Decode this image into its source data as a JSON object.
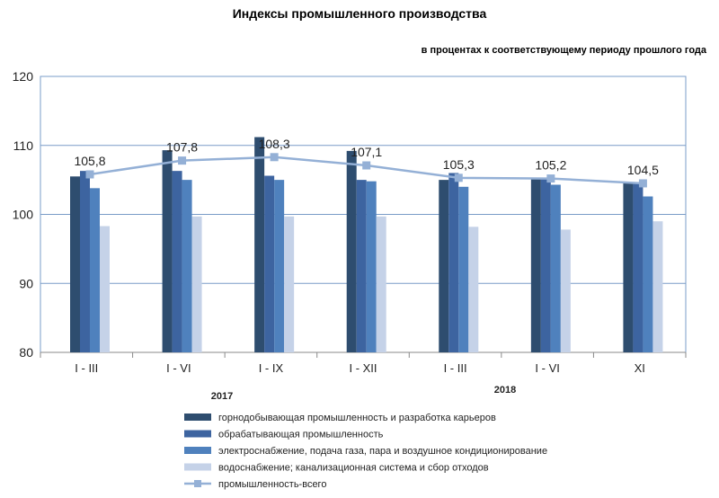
{
  "chart_data": {
    "type": "bar",
    "title": "Индексы промышленного  производства",
    "subtitle": "в процентах к соответствующему периоду прошлого года",
    "ylim": [
      80,
      120
    ],
    "yticks": [
      "80",
      "90",
      "100",
      "110",
      "120"
    ],
    "categories": [
      "I - III",
      "I - VI",
      "I - IX",
      "I - XII",
      "I - III",
      "I - VI",
      "XI"
    ],
    "year_labels": [
      "2017",
      "2018"
    ],
    "grid": true,
    "legend_position": "bottom",
    "series": [
      {
        "name": "горнодобывающая промышленность и разработка карьеров",
        "type": "bar",
        "color": "#2e4d6f",
        "values": [
          105.5,
          109.3,
          111.2,
          109.2,
          105.0,
          105.3,
          104.5
        ]
      },
      {
        "name": "обрабатывающая промышленность",
        "type": "bar",
        "color": "#3d64a0",
        "values": [
          106.3,
          106.3,
          105.6,
          105.0,
          106.0,
          105.2,
          104.5
        ]
      },
      {
        "name": "электроснабжение, подача газа, пара и воздушное кондиционирование",
        "type": "bar",
        "color": "#4f81bd",
        "values": [
          103.8,
          105.0,
          105.0,
          104.8,
          104.0,
          104.3,
          102.6
        ]
      },
      {
        "name": "водоснабжение; канализационная  система и сбор отходов",
        "type": "bar",
        "color": "#c5d2e8",
        "values": [
          98.3,
          99.7,
          99.7,
          99.7,
          98.2,
          97.8,
          99.0
        ]
      },
      {
        "name": "промышленность-всего",
        "type": "line",
        "color": "#94b0d6",
        "values": [
          105.8,
          107.8,
          108.3,
          107.1,
          105.3,
          105.2,
          104.5
        ],
        "labels": [
          "105,8",
          "107,8",
          "108,3",
          "107,1",
          "105,3",
          "105,2",
          "104,5"
        ]
      }
    ]
  }
}
